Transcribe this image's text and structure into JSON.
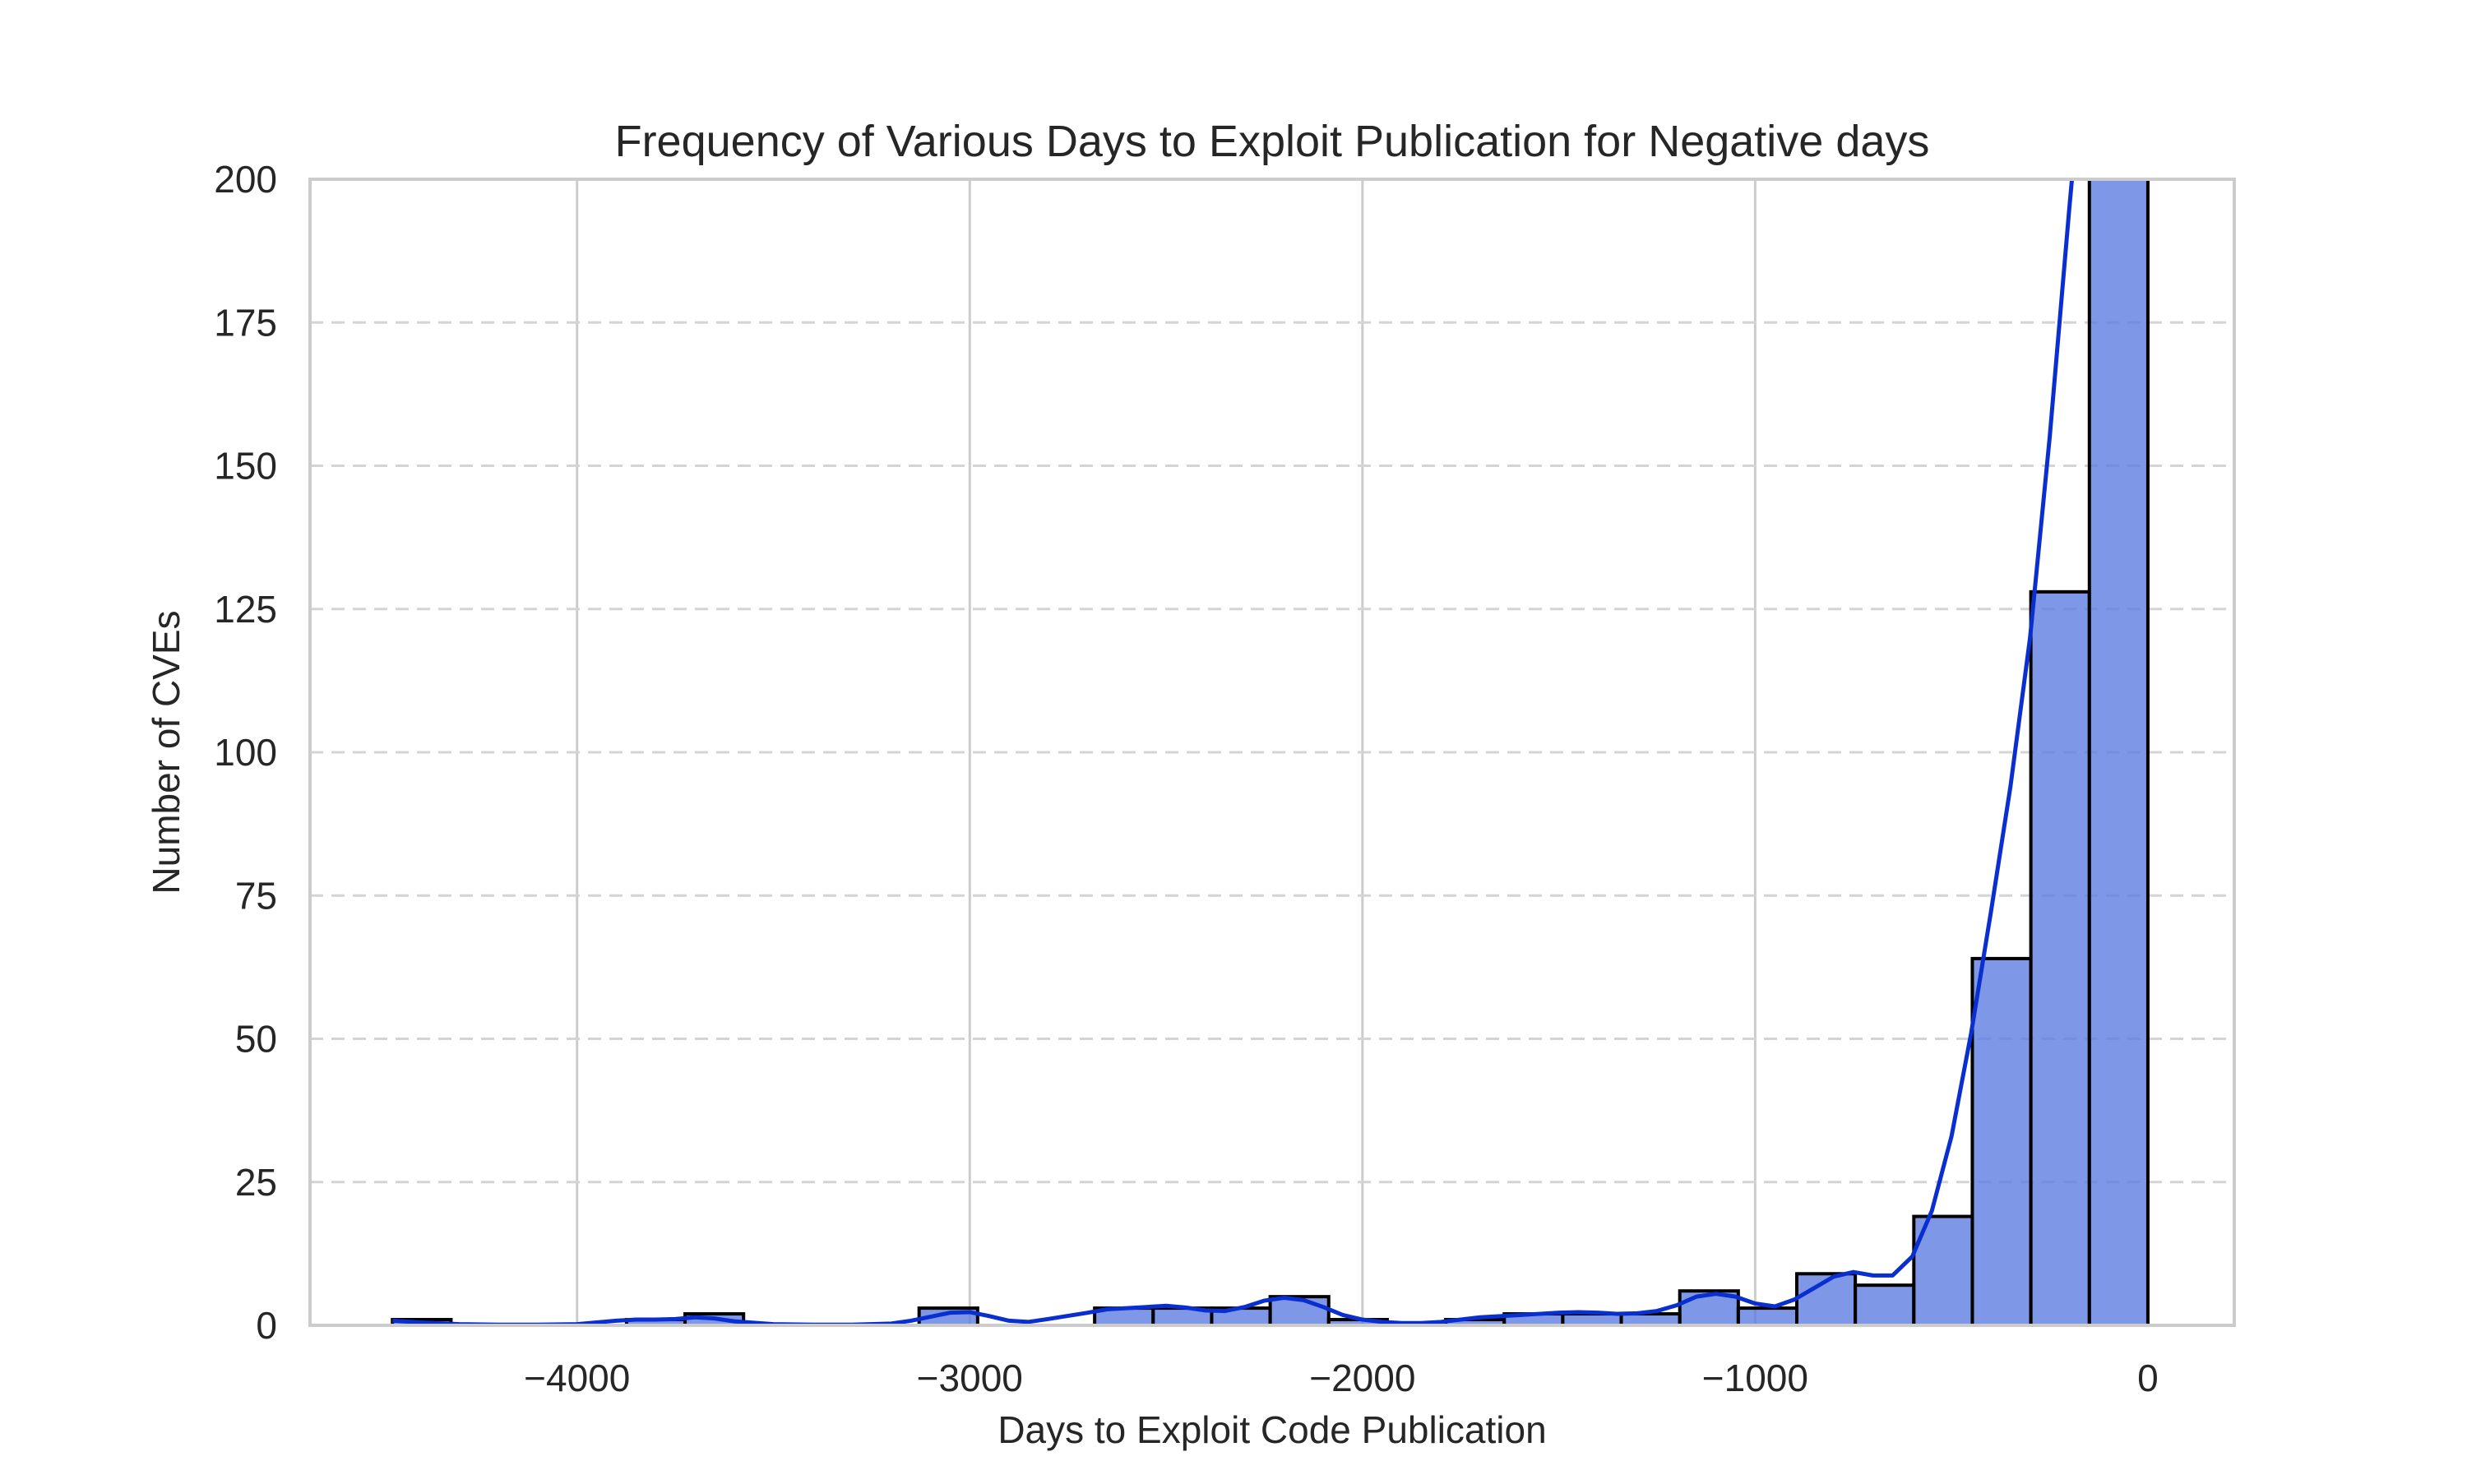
{
  "chart_data": {
    "type": "bar",
    "title": "Frequency of Various Days to Exploit Publication for Negative days",
    "xlabel": "Days to Exploit Code Publication",
    "ylabel": "Number of CVEs",
    "xlim": [
      -4680,
      220
    ],
    "ylim": [
      0,
      200
    ],
    "x_ticks": [
      -4000,
      -3000,
      -2000,
      -1000,
      0
    ],
    "x_tick_labels": [
      "−4000",
      "−3000",
      "−2000",
      "−1000",
      "0"
    ],
    "y_ticks": [
      0,
      25,
      50,
      75,
      100,
      125,
      150,
      175,
      200
    ],
    "y_tick_labels": [
      "0",
      "25",
      "50",
      "75",
      "100",
      "125",
      "150",
      "175",
      "200"
    ],
    "grid": {
      "x": "solid",
      "y": "dashed"
    },
    "legend": "none",
    "bin_width": 149,
    "bins": [
      {
        "start": -4470,
        "count": 1
      },
      {
        "start": -4321,
        "count": 0
      },
      {
        "start": -4172,
        "count": 0
      },
      {
        "start": -4023,
        "count": 0
      },
      {
        "start": -3874,
        "count": 1
      },
      {
        "start": -3725,
        "count": 2
      },
      {
        "start": -3576,
        "count": 0
      },
      {
        "start": -3427,
        "count": 0
      },
      {
        "start": -3278,
        "count": 0
      },
      {
        "start": -3129,
        "count": 3
      },
      {
        "start": -2980,
        "count": 0
      },
      {
        "start": -2831,
        "count": 0
      },
      {
        "start": -2682,
        "count": 3
      },
      {
        "start": -2533,
        "count": 3
      },
      {
        "start": -2384,
        "count": 3
      },
      {
        "start": -2235,
        "count": 5
      },
      {
        "start": -2086,
        "count": 1
      },
      {
        "start": -1937,
        "count": 0
      },
      {
        "start": -1788,
        "count": 1
      },
      {
        "start": -1639,
        "count": 2
      },
      {
        "start": -1490,
        "count": 2
      },
      {
        "start": -1341,
        "count": 2
      },
      {
        "start": -1192,
        "count": 6
      },
      {
        "start": -1043,
        "count": 3
      },
      {
        "start": -894,
        "count": 9
      },
      {
        "start": -745,
        "count": 7
      },
      {
        "start": -596,
        "count": 19
      },
      {
        "start": -447,
        "count": 64
      },
      {
        "start": -298,
        "count": 128
      },
      {
        "start": -149,
        "count": 200
      }
    ],
    "kde": {
      "x": [
        -4470,
        -4400,
        -4300,
        -4200,
        -4100,
        -4000,
        -3950,
        -3900,
        -3850,
        -3800,
        -3750,
        -3700,
        -3650,
        -3600,
        -3500,
        -3400,
        -3300,
        -3200,
        -3150,
        -3100,
        -3050,
        -3000,
        -2950,
        -2900,
        -2850,
        -2800,
        -2700,
        -2650,
        -2600,
        -2550,
        -2500,
        -2450,
        -2400,
        -2350,
        -2300,
        -2250,
        -2200,
        -2150,
        -2100,
        -2050,
        -2000,
        -1950,
        -1900,
        -1850,
        -1800,
        -1750,
        -1700,
        -1650,
        -1600,
        -1550,
        -1500,
        -1450,
        -1400,
        -1350,
        -1300,
        -1250,
        -1200,
        -1150,
        -1100,
        -1050,
        -1000,
        -950,
        -900,
        -850,
        -800,
        -750,
        -700,
        -650,
        -600,
        -550,
        -500,
        -450,
        -400,
        -350,
        -300,
        -250,
        -200,
        -180
      ],
      "y": [
        0.8,
        0.5,
        0.2,
        0.1,
        0.1,
        0.2,
        0.5,
        0.8,
        1.0,
        1.0,
        1.1,
        1.4,
        1.2,
        0.7,
        0.2,
        0.1,
        0.1,
        0.3,
        0.8,
        1.5,
        2.2,
        2.3,
        1.6,
        0.8,
        0.6,
        1.1,
        2.2,
        2.8,
        3.0,
        3.2,
        3.4,
        3.1,
        2.6,
        2.5,
        3.2,
        4.3,
        4.8,
        4.4,
        3.2,
        1.8,
        1.0,
        0.6,
        0.4,
        0.4,
        0.6,
        1.0,
        1.4,
        1.6,
        1.8,
        2.0,
        2.2,
        2.3,
        2.2,
        2.0,
        2.1,
        2.5,
        3.5,
        5.0,
        5.5,
        5.0,
        3.8,
        3.3,
        4.5,
        6.5,
        8.5,
        9.3,
        8.7,
        8.7,
        12.0,
        20.0,
        33.0,
        51.0,
        72.0,
        94.0,
        120.0,
        155.0,
        195.0,
        210.0
      ]
    }
  }
}
